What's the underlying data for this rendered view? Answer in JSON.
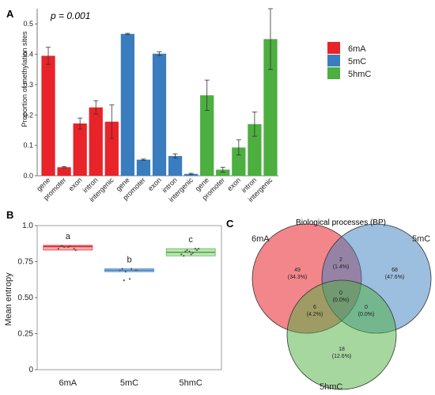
{
  "colors": {
    "6mA": "#e8232a",
    "5mC": "#3a7dbf",
    "5hmC": "#4caf3f"
  },
  "chart_data": [
    {
      "panel": "A",
      "type": "bar",
      "annotation": "p = 0.001",
      "ylabel": "Proportion of methylation sites",
      "ylim": [
        0,
        0.55
      ],
      "yticks": [
        "0.0",
        "0.1",
        "0.2",
        "0.3",
        "0.4",
        "0.5"
      ],
      "categories": [
        "gene",
        "promoter",
        "exon",
        "intron",
        "intergenic"
      ],
      "legend": [
        "6mA",
        "5mC",
        "5hmC"
      ],
      "legend_position": "right",
      "series": [
        {
          "name": "6mA",
          "values": [
            0.395,
            0.028,
            0.172,
            0.225,
            0.178
          ],
          "errors": [
            0.028,
            0.002,
            0.018,
            0.022,
            0.055
          ]
        },
        {
          "name": "5mC",
          "values": [
            0.467,
            0.053,
            0.402,
            0.065,
            0.006
          ],
          "errors": [
            0.002,
            0.002,
            0.006,
            0.007,
            0.002
          ]
        },
        {
          "name": "5hmC",
          "values": [
            0.265,
            0.02,
            0.093,
            0.17,
            0.45
          ],
          "errors": [
            0.05,
            0.008,
            0.025,
            0.04,
            0.1
          ]
        }
      ]
    },
    {
      "panel": "B",
      "type": "box",
      "ylabel": "Mean entropy",
      "ylim": [
        0,
        1.0
      ],
      "yticks": [
        "0",
        "0.25",
        "0.50",
        "0.75",
        "1.0"
      ],
      "categories": [
        "6mA",
        "5mC",
        "5hmC"
      ],
      "medians": [
        0.855,
        0.69,
        0.815
      ],
      "letters": [
        "a",
        "b",
        "c"
      ],
      "points": [
        [
          0.84,
          0.85,
          0.86,
          0.83,
          0.86,
          0.85,
          0.84,
          0.86
        ],
        [
          0.69,
          0.68,
          0.7,
          0.69,
          0.62,
          0.63,
          0.69,
          0.7
        ],
        [
          0.8,
          0.83,
          0.81,
          0.84,
          0.82,
          0.8,
          0.83,
          0.79,
          0.82,
          0.84
        ]
      ]
    },
    {
      "panel": "C",
      "type": "venn",
      "title": "Biological processes (BP)",
      "sets": [
        "6mA",
        "5mC",
        "5hmC"
      ],
      "regions": {
        "6mA_only": {
          "count": "49",
          "pct": "(34.3%)"
        },
        "5mC_only": {
          "count": "68",
          "pct": "(47.6%)"
        },
        "5hmC_only": {
          "count": "18",
          "pct": "(12.6%)"
        },
        "6mA_5mC": {
          "count": "2",
          "pct": "(1.4%)"
        },
        "6mA_5hmC": {
          "count": "6",
          "pct": "(4.2%)"
        },
        "5mC_5hmC": {
          "count": "0",
          "pct": "(0.0%)"
        },
        "all": {
          "count": "0",
          "pct": "(0.0%)"
        }
      }
    }
  ]
}
